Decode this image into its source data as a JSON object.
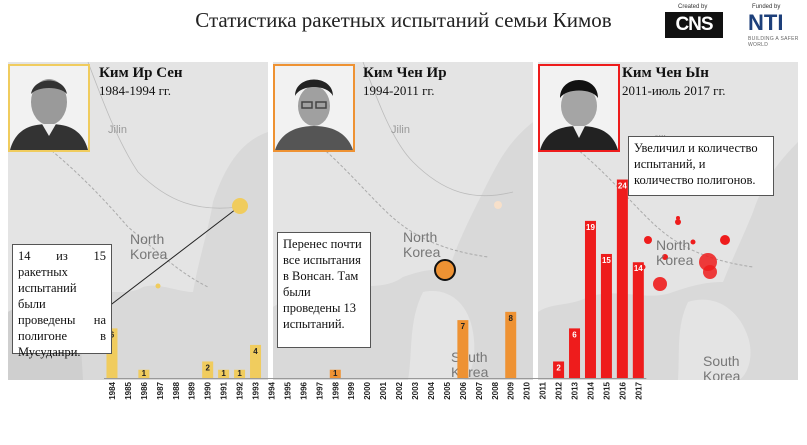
{
  "title": "Статистика ракетных испытаний семьи Кимов",
  "logos": {
    "created_by": "Created by",
    "cns": "CNS",
    "funded_by": "Funded by",
    "nti": "NTI",
    "nti_tagline": "BUILDING A SAFER WORLD"
  },
  "colors": {
    "kim1": "#f0cc5e",
    "kim2": "#ee9233",
    "kim3": "#ee1c1c"
  },
  "leaders": [
    {
      "name": "Ким Ир Сен",
      "years": "1984-1994 гг."
    },
    {
      "name": "Ким Чен Ир",
      "years": "1994-2011 гг."
    },
    {
      "name": "Ким Чен Ын",
      "years": "2011-июль 2017 гг."
    }
  ],
  "map_labels": {
    "jilin": "Jilin",
    "north_korea_1": "North",
    "north_korea_2": "Korea",
    "south_korea_1": "South",
    "south_korea_2": "Korea"
  },
  "notes": {
    "kim1": "14 из 15 ракетных испытаний были проведены на полигоне в Мусуданри.",
    "kim2": "Перенес почти все испытания в Вонсан. Там были проведены 13 испытаний.",
    "kim3": "Увеличил и количество испытаний, и количество полигонов."
  },
  "chart_data": {
    "type": "bar",
    "title": "Статистика ракетных испытаний семьи Кимов",
    "xlabel": "",
    "ylabel": "",
    "ylim": [
      0,
      26
    ],
    "grid": false,
    "series": [
      {
        "name": "Ким Ир Сен",
        "color": "#f0cc5e",
        "categories": [
          "1984",
          "1985",
          "1986",
          "1987",
          "1988",
          "1989",
          "1990",
          "1991",
          "1992",
          "1993",
          "1994"
        ],
        "values": [
          6,
          0,
          1,
          0,
          0,
          0,
          2,
          1,
          1,
          4,
          0
        ]
      },
      {
        "name": "Ким Чен Ир",
        "color": "#ee9233",
        "categories": [
          "1995",
          "1996",
          "1997",
          "1998",
          "1999",
          "2000",
          "2001",
          "2002",
          "2003",
          "2004",
          "2005",
          "2006",
          "2007",
          "2008",
          "2009",
          "2010",
          "2011"
        ],
        "values": [
          0,
          0,
          0,
          1,
          0,
          0,
          0,
          0,
          0,
          0,
          0,
          7,
          0,
          0,
          8,
          0,
          0
        ]
      },
      {
        "name": "Ким Чен Ын",
        "color": "#ee1c1c",
        "categories": [
          "2012",
          "2013",
          "2014",
          "2015",
          "2016",
          "2017"
        ],
        "values": [
          2,
          6,
          19,
          15,
          24,
          14
        ]
      }
    ]
  }
}
